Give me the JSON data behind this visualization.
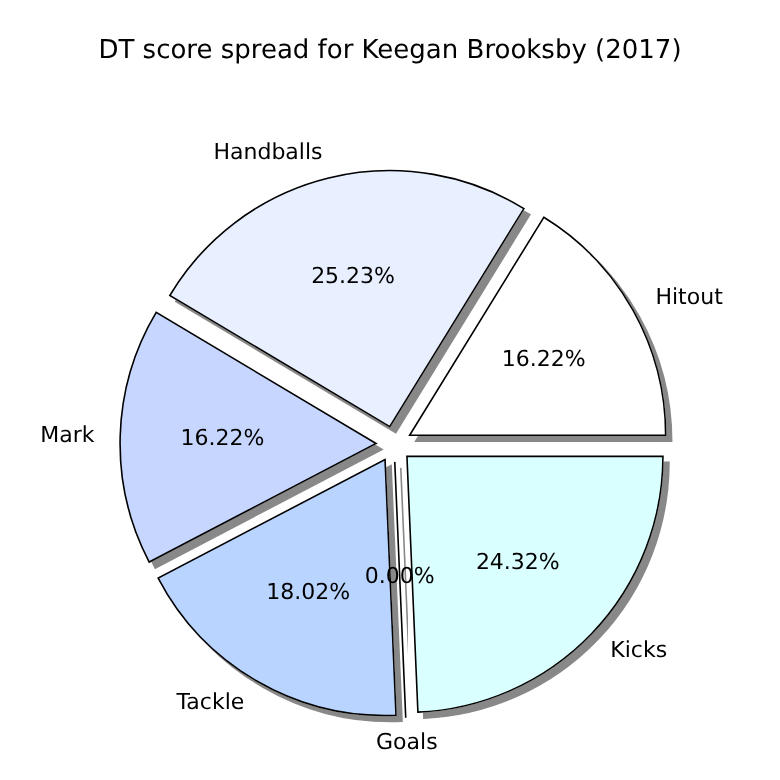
{
  "chart_data": {
    "type": "pie",
    "title": "DT score spread for Keegan Brooksby (2017)",
    "categories": [
      "Hitout",
      "Handballs",
      "Mark",
      "Tackle",
      "Goals",
      "Kicks"
    ],
    "values": [
      16.22,
      25.23,
      16.22,
      18.02,
      0.0,
      24.32
    ],
    "value_labels": [
      "16.22%",
      "25.23%",
      "16.22%",
      "18.02%",
      "0.00%",
      "24.32%"
    ],
    "colors": [
      "#ffffff",
      "#e8efff",
      "#c6d6ff",
      "#b8d4ff",
      "#c8e8ff",
      "#daffff"
    ]
  }
}
